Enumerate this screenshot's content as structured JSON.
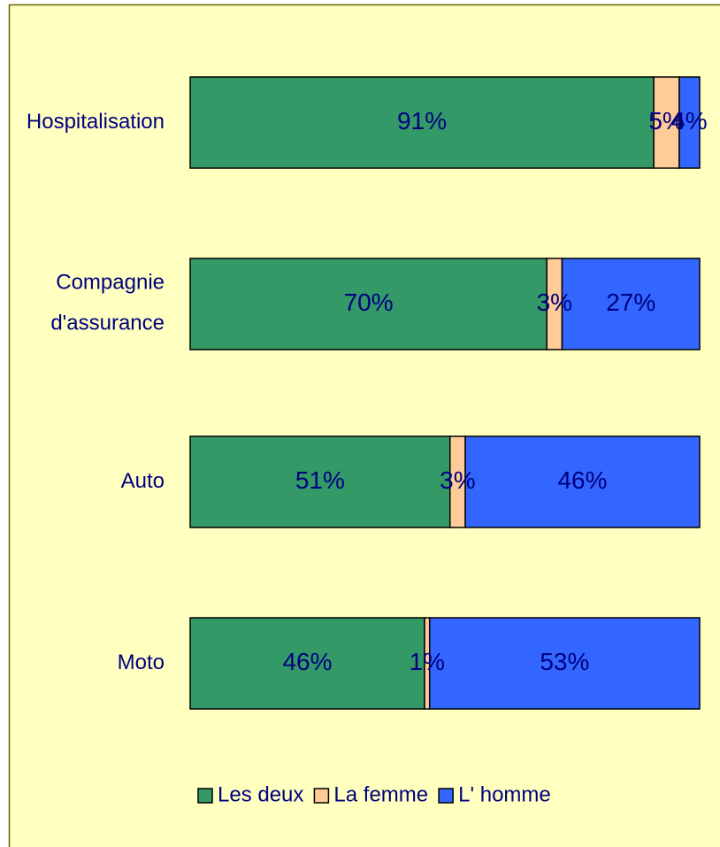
{
  "chart_data": {
    "type": "stacked_bar_horizontal",
    "categories": [
      "Hospitalisation",
      "Compagnie d'assurance",
      "Auto",
      "Moto"
    ],
    "series": [
      {
        "name": "Les deux",
        "color": "#339966",
        "values": [
          91,
          70,
          51,
          46
        ],
        "value_labels": [
          "91%",
          "70%",
          "51%",
          "46%"
        ]
      },
      {
        "name": "La femme",
        "color": "#ffcc99",
        "values": [
          5,
          3,
          3,
          1
        ],
        "value_labels": [
          "5%",
          "3%",
          "3%",
          "1%"
        ]
      },
      {
        "name": "L' homme",
        "color": "#3366ff",
        "values": [
          4,
          27,
          46,
          53
        ],
        "value_labels": [
          "4%",
          "27%",
          "46%",
          "53%"
        ]
      }
    ],
    "legend": "bottom"
  }
}
